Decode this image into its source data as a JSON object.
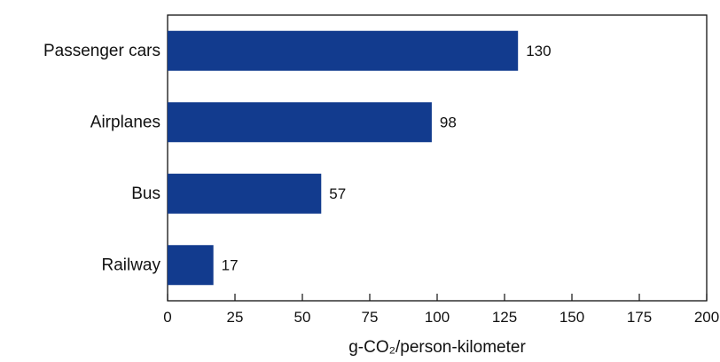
{
  "chart_data": {
    "type": "bar",
    "orientation": "horizontal",
    "categories": [
      "Passenger cars",
      "Airplanes",
      "Bus",
      "Railway"
    ],
    "values": [
      130,
      98,
      57,
      17
    ],
    "value_labels": [
      "130",
      "98",
      "57",
      "17"
    ],
    "xlabel": "g-CO₂/person-kilometer",
    "xlim": [
      0,
      200
    ],
    "xticks": [
      0,
      25,
      50,
      75,
      100,
      125,
      150,
      175,
      200
    ],
    "tick_labels": [
      "0",
      "25",
      "50",
      "75",
      "100",
      "125",
      "150",
      "175",
      "200"
    ],
    "grid": false,
    "bar_color": "#123B8E"
  }
}
